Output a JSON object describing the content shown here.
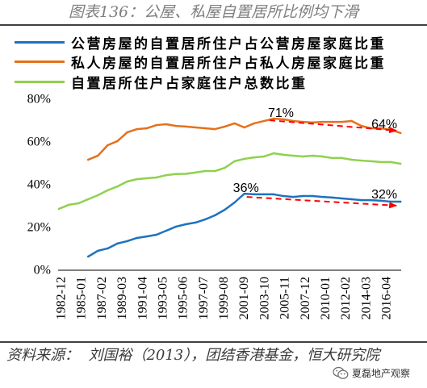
{
  "chart_data": {
    "type": "line",
    "title": "图表136：公屋、私屋自置居所比例均下滑",
    "xlabel": "",
    "ylabel": "",
    "ylim": [
      0,
      80
    ],
    "y_tick_labels": [
      "0%",
      "20%",
      "40%",
      "60%",
      "80%"
    ],
    "x_tick_labels": [
      "1982-12",
      "1985-01",
      "1987-02",
      "1989-03",
      "1991-04",
      "1993-05",
      "1995-06",
      "1997-07",
      "1999-08",
      "2001-09",
      "2003-10",
      "2005-11",
      "2007-12",
      "2010-01",
      "2012-02",
      "2014-03",
      "2016-04"
    ],
    "grid": false,
    "legend_position": "top",
    "series": [
      {
        "name": "公营房屋的自置居所住户占公营房屋家庭比重",
        "color": "#1F72C0",
        "x": [
          1985,
          1986,
          1987,
          1988,
          1989,
          1990,
          1991,
          1992,
          1993,
          1994,
          1995,
          1996,
          1997,
          1998,
          1999,
          2000,
          2001,
          2002,
          2003,
          2004,
          2005,
          2006,
          2007,
          2008,
          2009,
          2010,
          2011,
          2012,
          2013,
          2014,
          2015,
          2016,
          2017
        ],
        "values": [
          6.4,
          9.1,
          10.2,
          12.5,
          13.6,
          15.1,
          15.8,
          16.6,
          18.5,
          20.4,
          21.5,
          22.3,
          23.8,
          25.7,
          28.3,
          31.7,
          35.8,
          35.5,
          35.5,
          35.5,
          34.7,
          34.3,
          34.7,
          34.7,
          34.3,
          34.0,
          33.6,
          33.2,
          32.8,
          32.8,
          32.5,
          32.1,
          32.1
        ]
      },
      {
        "name": "私人房屋的自置居所住户占私人房屋家庭比重",
        "color": "#E5711C",
        "x": [
          1985,
          1986,
          1987,
          1988,
          1989,
          1990,
          1991,
          1992,
          1993,
          1994,
          1995,
          1996,
          1997,
          1998,
          1999,
          2000,
          2001,
          2002,
          2003,
          2004,
          2005,
          2006,
          2007,
          2008,
          2009,
          2010,
          2011,
          2012,
          2013,
          2014,
          2015,
          2016,
          2017
        ],
        "values": [
          51.7,
          53.6,
          58.5,
          60.4,
          64.5,
          66.0,
          66.4,
          67.9,
          68.3,
          67.5,
          67.2,
          66.8,
          66.4,
          66.0,
          67.2,
          68.7,
          66.8,
          68.7,
          69.8,
          70.9,
          70.6,
          69.8,
          69.4,
          69.1,
          69.4,
          69.4,
          69.4,
          69.8,
          67.5,
          66.4,
          66.4,
          65.7,
          64.2
        ]
      },
      {
        "name": "自置居所住户占家庭住户总数比重",
        "color": "#8FD14F",
        "x": [
          1982,
          1983,
          1984,
          1985,
          1986,
          1987,
          1988,
          1989,
          1990,
          1991,
          1992,
          1993,
          1994,
          1995,
          1996,
          1997,
          1998,
          1999,
          2000,
          2001,
          2002,
          2003,
          2004,
          2005,
          2006,
          2007,
          2008,
          2009,
          2010,
          2011,
          2012,
          2013,
          2014,
          2015,
          2016,
          2017
        ],
        "values": [
          28.7,
          30.6,
          31.3,
          33.2,
          35.1,
          37.4,
          39.2,
          41.5,
          42.6,
          43.0,
          43.4,
          44.5,
          45.0,
          45.1,
          45.7,
          46.4,
          46.4,
          47.9,
          51.0,
          52.1,
          52.8,
          53.2,
          54.7,
          54.0,
          53.6,
          53.2,
          53.6,
          53.2,
          52.5,
          52.5,
          51.7,
          51.3,
          51.0,
          50.6,
          50.6,
          49.8
        ]
      }
    ],
    "annotations": [
      {
        "text": "71%",
        "series": 1,
        "x": 2004
      },
      {
        "text": "64%",
        "series": 1,
        "x": 2017
      },
      {
        "text": "36%",
        "series": 0,
        "x": 2001
      },
      {
        "text": "32%",
        "series": 0,
        "x": 2017
      }
    ],
    "trend_arrows": [
      {
        "series": 1,
        "from_x": 2004,
        "to_x": 2017
      },
      {
        "series": 0,
        "from_x": 2001,
        "to_x": 2017
      }
    ]
  },
  "colors": {
    "title": "#7F7F7F",
    "trend_arrow": "#FF0000",
    "axis": "#000000"
  },
  "source": "资料来源：  刘国裕（2013），团结香港基金，恒大研究院",
  "watermark": {
    "icon": "wechat-icon",
    "text": "夏磊地产观察"
  }
}
